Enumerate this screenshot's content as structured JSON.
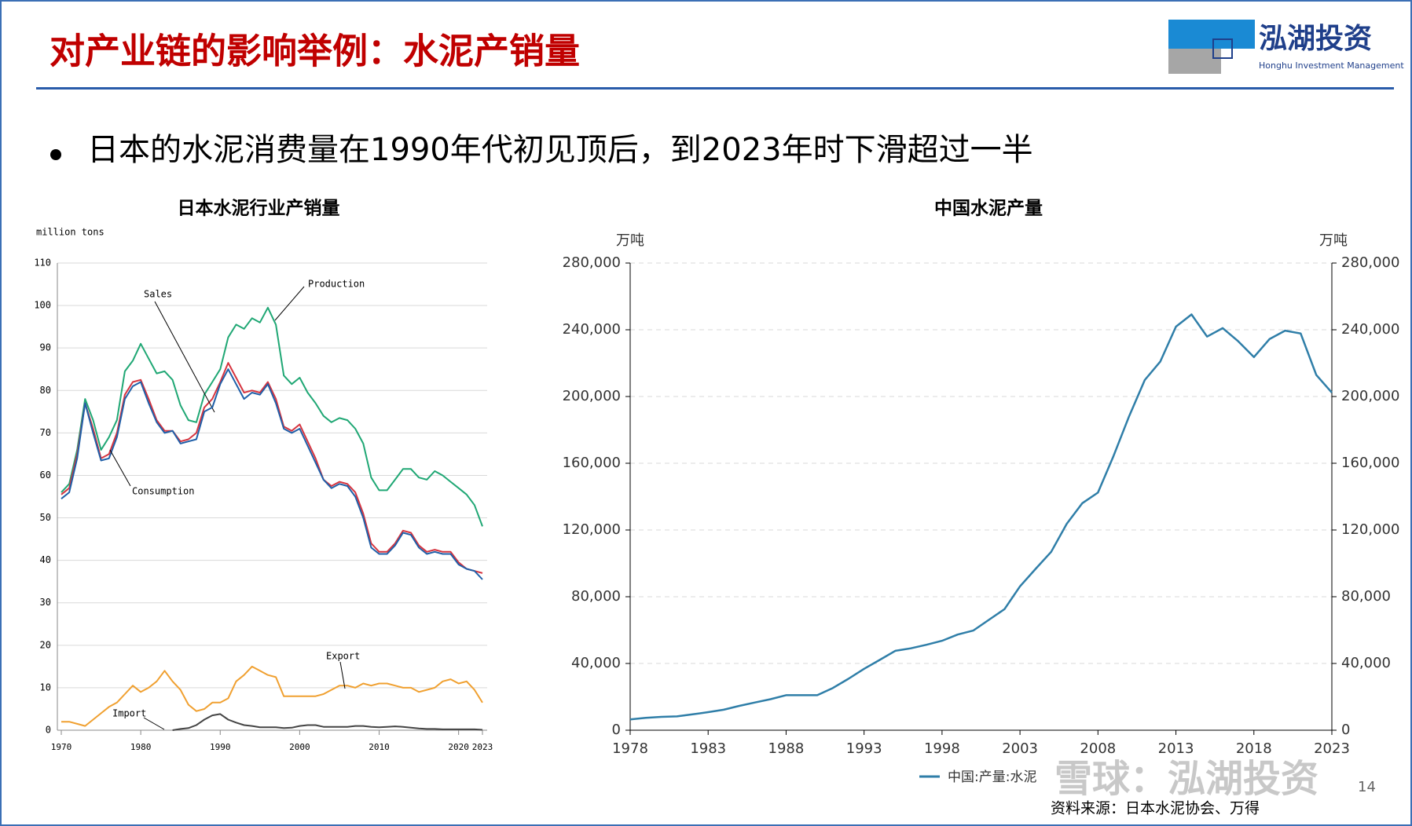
{
  "slide": {
    "title": "对产业链的影响举例：水泥产销量",
    "bullet": "日本的水泥消费量在1990年代初见顶后，到2023年时下滑超过一半",
    "source": "资料来源：日本水泥协会、万得",
    "page_number": "14",
    "watermark": "雪球：泓湖投资",
    "logo": {
      "name": "泓湖投资",
      "subtitle": "Honghu Investment Management"
    }
  },
  "chart_data": [
    {
      "type": "line",
      "title": "日本水泥行业产销量",
      "y_label": "million tons",
      "x": [
        1970,
        1971,
        1972,
        1973,
        1974,
        1975,
        1976,
        1977,
        1978,
        1979,
        1980,
        1981,
        1982,
        1983,
        1984,
        1985,
        1986,
        1987,
        1988,
        1989,
        1990,
        1991,
        1992,
        1993,
        1994,
        1995,
        1996,
        1997,
        1998,
        1999,
        2000,
        2001,
        2002,
        2003,
        2004,
        2005,
        2006,
        2007,
        2008,
        2009,
        2010,
        2011,
        2012,
        2013,
        2014,
        2015,
        2016,
        2017,
        2018,
        2019,
        2020,
        2021,
        2022,
        2023
      ],
      "xlim": [
        1970,
        2023
      ],
      "xticks": [
        1970,
        1980,
        1990,
        2000,
        2010,
        2020,
        2023
      ],
      "ylim": [
        0,
        110
      ],
      "yticks": [
        0,
        10,
        20,
        30,
        40,
        50,
        60,
        70,
        80,
        90,
        100,
        110
      ],
      "grid": true,
      "series": [
        {
          "name": "Production",
          "color": "#1fa774",
          "values": [
            56,
            58,
            66,
            78,
            73,
            66,
            69,
            73,
            84.5,
            87,
            91,
            87.5,
            84,
            84.5,
            82.5,
            76.5,
            73,
            72.5,
            79,
            82,
            85,
            92.5,
            95.5,
            94.5,
            97,
            96,
            99.5,
            95.5,
            83.5,
            81.5,
            83,
            79.5,
            77,
            74,
            72.5,
            73.5,
            73,
            71,
            67.5,
            59.5,
            56.5,
            56.5,
            59,
            61.5,
            61.5,
            59.5,
            59,
            61,
            60,
            58.5,
            57,
            55.5,
            53,
            48
          ]
        },
        {
          "name": "Sales",
          "color": "#d6343f",
          "values": [
            55.5,
            57,
            65,
            77,
            71,
            64,
            65,
            70,
            79,
            82,
            82.5,
            78,
            73,
            70.5,
            70.5,
            68,
            68.5,
            70,
            76,
            78,
            82,
            86.5,
            83,
            79.5,
            80,
            79.5,
            82,
            78,
            71.5,
            70.5,
            72,
            68,
            64,
            59,
            57.5,
            58.5,
            58,
            56,
            51,
            44,
            42,
            42,
            44,
            47,
            46.5,
            43.5,
            42,
            42.5,
            42,
            42,
            39.5,
            38,
            37.5,
            37
          ]
        },
        {
          "name": "Consumption",
          "color": "#1f5fa8",
          "values": [
            54.5,
            56,
            64,
            77,
            70,
            63.5,
            64,
            69,
            78,
            81,
            82,
            77,
            72.5,
            70,
            70.5,
            67.5,
            68,
            68.5,
            75,
            76,
            81.5,
            85,
            81.5,
            78,
            79.5,
            79,
            81.5,
            77,
            71,
            70,
            71,
            67,
            63,
            59,
            57,
            58,
            57.5,
            55,
            50,
            43,
            41.5,
            41.5,
            43.5,
            46.5,
            46,
            43,
            41.5,
            42,
            41.5,
            41.5,
            39,
            38,
            37.5,
            35.5
          ]
        },
        {
          "name": "Export",
          "color": "#f0a030",
          "values": [
            2,
            2,
            1.5,
            1,
            2.5,
            4,
            5.5,
            6.5,
            8.5,
            10.5,
            9,
            10,
            11.5,
            14,
            11.5,
            9.5,
            6,
            4.5,
            5,
            6.5,
            6.5,
            7.5,
            11.5,
            13,
            15,
            14,
            13,
            12.5,
            8,
            8,
            8,
            8,
            8,
            8.5,
            9.5,
            10.5,
            10.5,
            10,
            11,
            10.5,
            11,
            11,
            10.5,
            10,
            10,
            9,
            9.5,
            10,
            11.5,
            12,
            11,
            11.5,
            9.5,
            6.5
          ]
        },
        {
          "name": "Import",
          "color": "#444444",
          "values": [
            null,
            null,
            null,
            null,
            null,
            null,
            null,
            null,
            null,
            null,
            null,
            null,
            null,
            null,
            0,
            0.3,
            0.5,
            1.2,
            2.5,
            3.5,
            3.8,
            2.5,
            1.8,
            1.2,
            1,
            0.7,
            0.7,
            0.7,
            0.5,
            0.6,
            1,
            1.2,
            1.2,
            0.8,
            0.8,
            0.8,
            0.8,
            1,
            1,
            0.8,
            0.7,
            0.8,
            0.9,
            0.8,
            0.6,
            0.4,
            0.3,
            0.3,
            0.2,
            0.2,
            0.2,
            0.2,
            0.2,
            0.1
          ]
        }
      ]
    },
    {
      "type": "line",
      "title": "中国水泥产量",
      "y_label": "万吨",
      "y2_label": "万吨",
      "x": [
        1978,
        1979,
        1980,
        1981,
        1982,
        1983,
        1984,
        1985,
        1986,
        1987,
        1988,
        1989,
        1990,
        1991,
        1992,
        1993,
        1994,
        1995,
        1996,
        1997,
        1998,
        1999,
        2000,
        2001,
        2002,
        2003,
        2004,
        2005,
        2006,
        2007,
        2008,
        2009,
        2010,
        2011,
        2012,
        2013,
        2014,
        2015,
        2016,
        2017,
        2018,
        2019,
        2020,
        2021,
        2022,
        2023
      ],
      "xlim": [
        1978,
        2023
      ],
      "xticks": [
        1978,
        1983,
        1988,
        1993,
        1998,
        2003,
        2008,
        2013,
        2018,
        2023
      ],
      "ylim": [
        0,
        280000
      ],
      "yticks": [
        0,
        {
          "value": 40000,
          "label": "40,000"
        },
        {
          "value": 80000,
          "label": "80,000"
        },
        {
          "value": 120000,
          "label": "120,000"
        },
        {
          "value": 160000,
          "label": "160,000"
        },
        {
          "value": 200000,
          "label": "200,000"
        },
        {
          "value": 240000,
          "label": "240,000"
        },
        {
          "value": 280000,
          "label": "280,000"
        }
      ],
      "y2lim": [
        0,
        280000
      ],
      "y2ticks": [
        0,
        {
          "value": 40000,
          "label": "40,000"
        },
        {
          "value": 80000,
          "label": "80,000"
        },
        {
          "value": 120000,
          "label": "120,000"
        },
        {
          "value": 160000,
          "label": "160,000"
        },
        {
          "value": 200000,
          "label": "200,000"
        },
        {
          "value": 240000,
          "label": "240,000"
        },
        {
          "value": 280000,
          "label": "280,000"
        }
      ],
      "grid": true,
      "legend": "bottom",
      "series": [
        {
          "name": "中国:产量:水泥",
          "color": "#2f7ea8",
          "values": [
            6500,
            7400,
            8000,
            8300,
            9500,
            10800,
            12300,
            14600,
            16600,
            18600,
            21000,
            21000,
            21000,
            25300,
            30800,
            36800,
            42100,
            47600,
            49100,
            51200,
            53600,
            57300,
            59700,
            66100,
            72500,
            86200,
            96700,
            106900,
            123700,
            136100,
            142400,
            164400,
            188200,
            209900,
            221000,
            241900,
            249200,
            235900,
            241000,
            233100,
            223600,
            234400,
            239500,
            237800,
            212900,
            202300
          ]
        }
      ]
    }
  ]
}
